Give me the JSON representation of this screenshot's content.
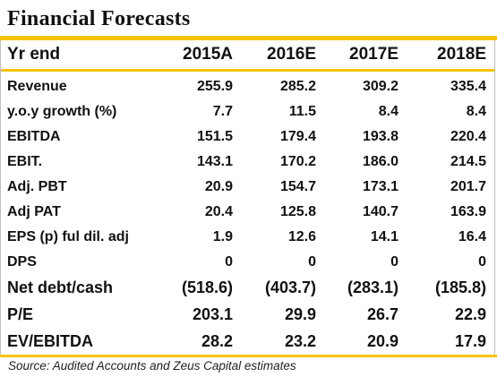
{
  "title": "Financial Forecasts",
  "header": {
    "label": "Yr end",
    "years": [
      "2015A",
      "2016E",
      "2017E",
      "2018E"
    ]
  },
  "rows": [
    {
      "label": "Revenue",
      "values": [
        "255.9",
        "285.2",
        "309.2",
        "335.4"
      ]
    },
    {
      "label": "y.o.y growth (%)",
      "values": [
        "7.7",
        "11.5",
        "8.4",
        "8.4"
      ]
    },
    {
      "label": "EBITDA",
      "values": [
        "151.5",
        "179.4",
        "193.8",
        "220.4"
      ]
    },
    {
      "label": "EBIT.",
      "values": [
        "143.1",
        "170.2",
        "186.0",
        "214.5"
      ]
    },
    {
      "label": "Adj. PBT",
      "values": [
        "20.9",
        "154.7",
        "173.1",
        "201.7"
      ]
    },
    {
      "label": "Adj PAT",
      "values": [
        "20.4",
        "125.8",
        "140.7",
        "163.9"
      ]
    },
    {
      "label": "EPS (p) ful dil. adj",
      "values": [
        "1.9",
        "12.6",
        "14.1",
        "16.4"
      ]
    },
    {
      "label": "DPS",
      "values": [
        "0",
        "0",
        "0",
        "0"
      ]
    },
    {
      "label": "Net debt/cash",
      "values": [
        "(518.6)",
        "(403.7)",
        "(283.1)",
        "(185.8)"
      ]
    },
    {
      "label": "P/E",
      "values": [
        "203.1",
        "29.9",
        "26.7",
        "22.9"
      ]
    },
    {
      "label": "EV/EBITDA",
      "values": [
        "28.2",
        "23.2",
        "20.9",
        "17.9"
      ]
    }
  ],
  "source": "Source: Audited Accounts and Zeus Capital estimates",
  "colors": {
    "accent": "#f5c400",
    "text": "#111111",
    "border": "#bfbfbf"
  }
}
